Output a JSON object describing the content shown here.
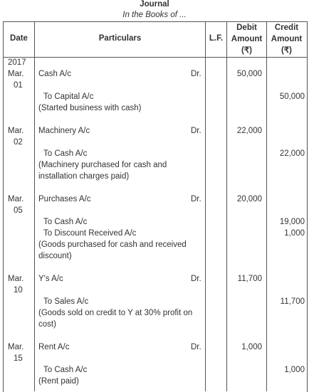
{
  "journal": {
    "title": "Journal",
    "subtitle": "In the Books of ..."
  },
  "columns": {
    "date": "Date",
    "particulars": "Particulars",
    "lf": "L.F.",
    "debit": [
      "Debit",
      "Amount",
      "(₹)"
    ],
    "credit": [
      "Credit",
      "Amount",
      "(₹)"
    ]
  },
  "year": "2017",
  "entries": [
    {
      "date": [
        "Mar.",
        "01"
      ],
      "debit_account": "Cash A/c",
      "dr": "Dr.",
      "debit_amount": "50,000",
      "credits": [
        {
          "account": "To Capital A/c",
          "amount": "50,000"
        }
      ],
      "narration": [
        "(Started business with cash)"
      ]
    },
    {
      "date": [
        "Mar.",
        "02"
      ],
      "debit_account": "Machinery A/c",
      "dr": "Dr.",
      "debit_amount": "22,000",
      "credits": [
        {
          "account": "To Cash A/c",
          "amount": "22,000"
        }
      ],
      "narration": [
        "(Machinery purchased for cash and",
        "installation charges paid)"
      ]
    },
    {
      "date": [
        "Mar.",
        "05"
      ],
      "debit_account": "Purchases A/c",
      "dr": "Dr.",
      "debit_amount": "20,000",
      "credits": [
        {
          "account": "To Cash A/c",
          "amount": "19,000"
        },
        {
          "account": "To Discount Received A/c",
          "amount": "1,000"
        }
      ],
      "narration": [
        "(Goods purchased for cash and received",
        "discount)"
      ]
    },
    {
      "date": [
        "Mar.",
        "10"
      ],
      "debit_account": "Y's A/c",
      "dr": "Dr.",
      "debit_amount": "11,700",
      "credits": [
        {
          "account": "To Sales A/c",
          "amount": "11,700"
        }
      ],
      "narration": [
        "(Goods sold on credit to Y at 30% profit on",
        "cost)"
      ]
    },
    {
      "date": [
        "Mar.",
        "15"
      ],
      "debit_account": "Rent A/c",
      "dr": "Dr.",
      "debit_amount": "1,000",
      "credits": [
        {
          "account": "To Cash A/c",
          "amount": "1,000"
        }
      ],
      "narration": [
        "(Rent paid)"
      ]
    }
  ]
}
